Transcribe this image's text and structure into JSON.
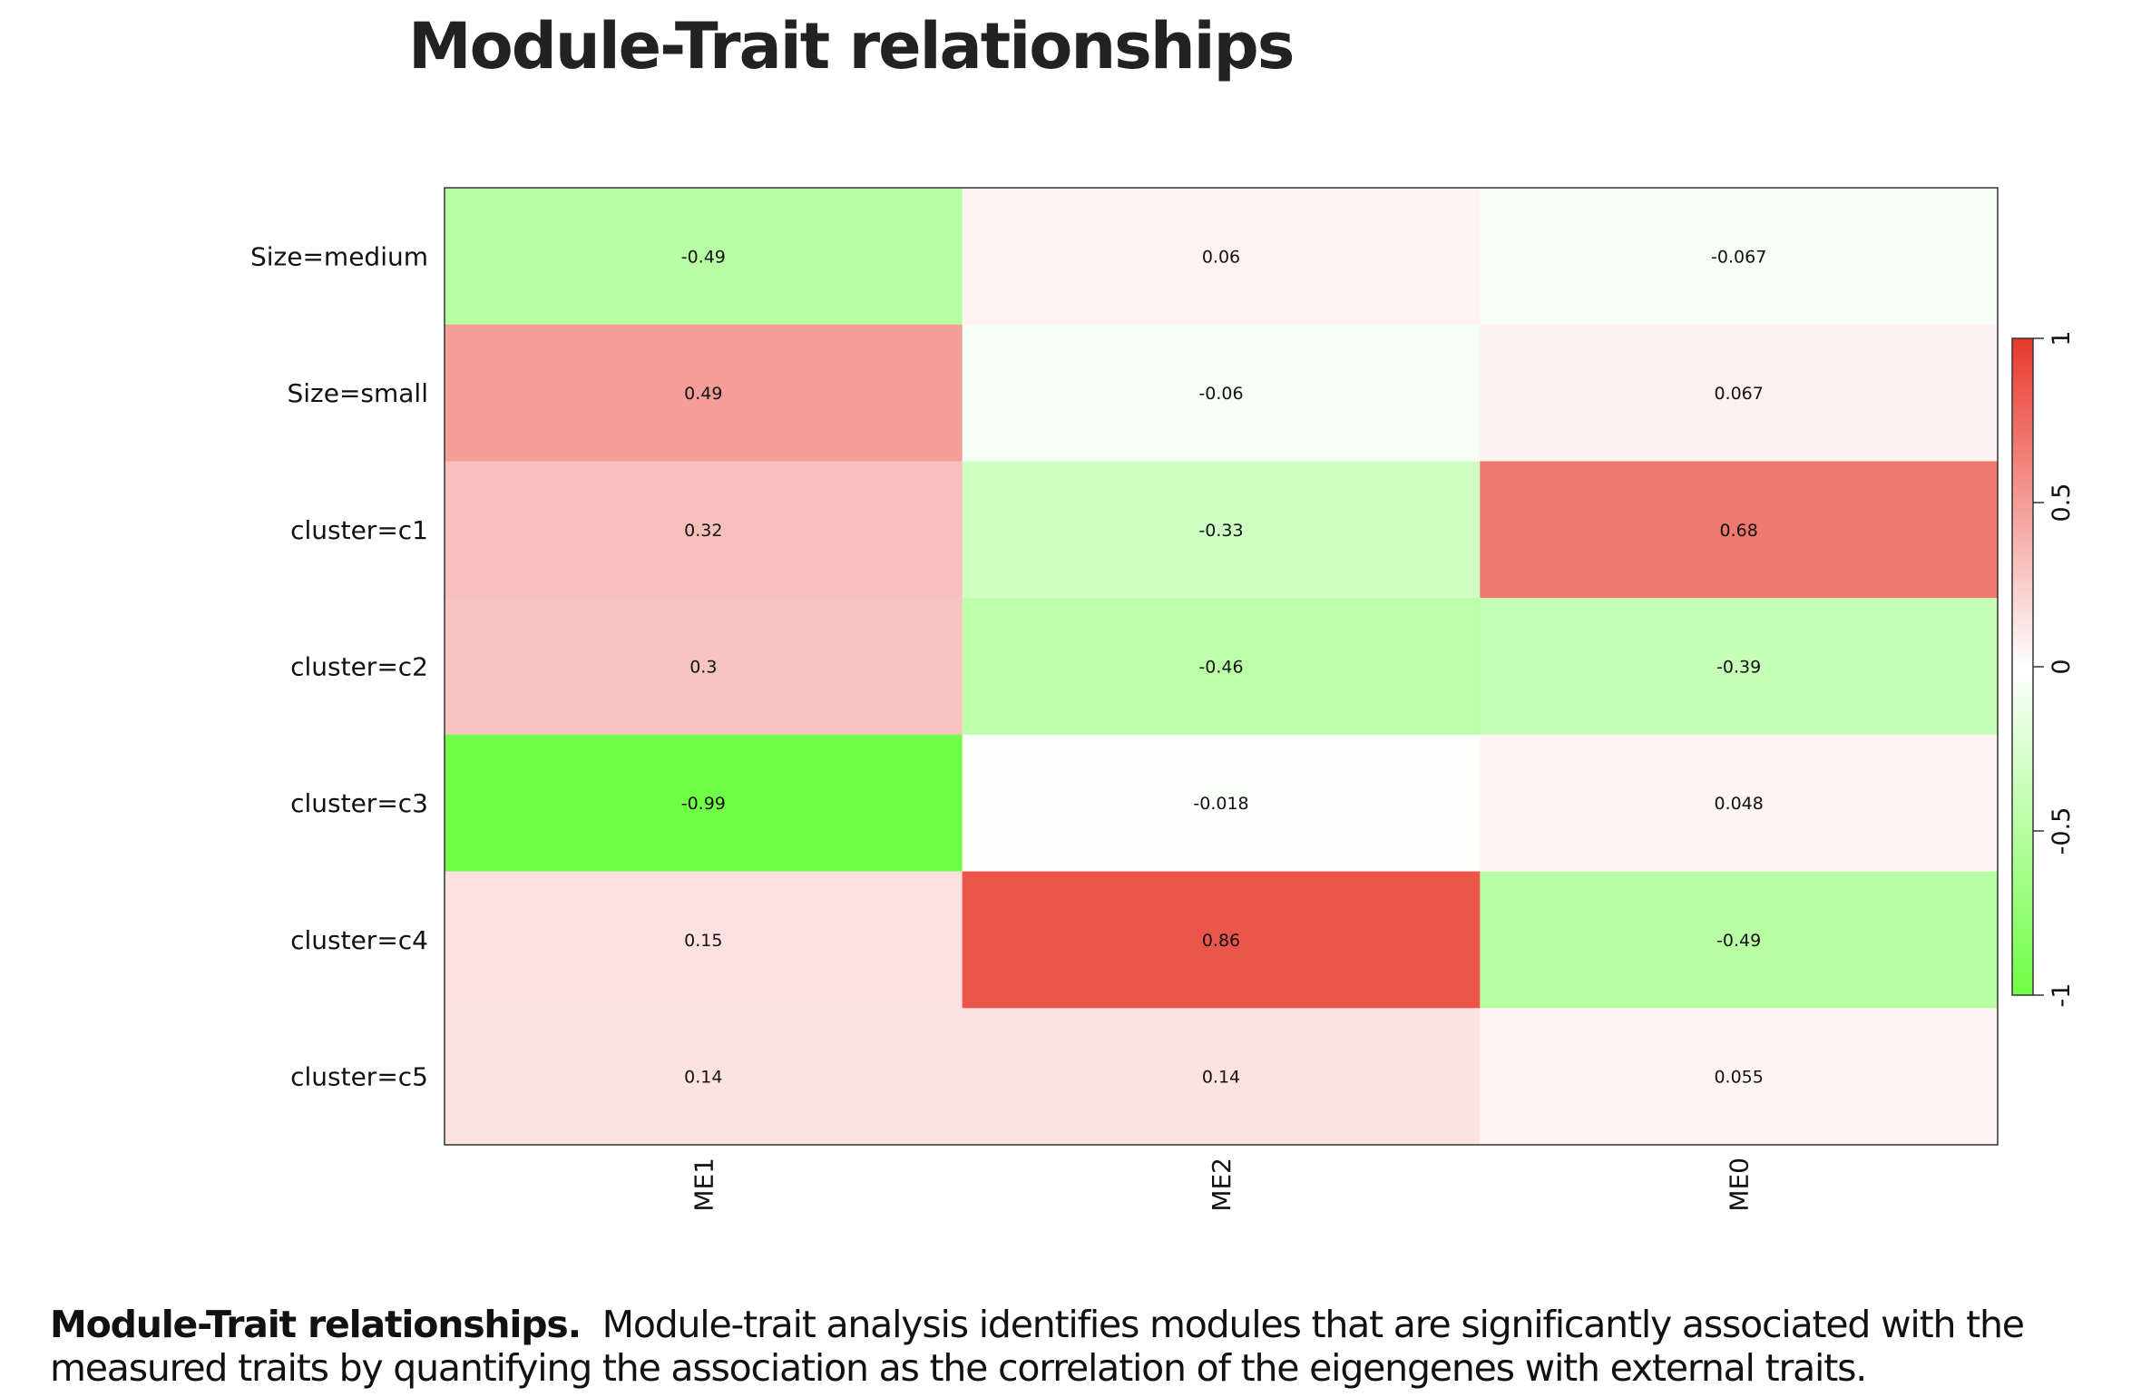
{
  "page": {
    "title": "Module-Trait relationships",
    "caption_lead": "Module-Trait relationships.",
    "caption_text": "Module-trait analysis identifies modules that are significantly associated with the measured traits by quantifying the association as the correlation of the eigengenes with external traits."
  },
  "colors": {
    "negative": "#6ffe45",
    "zero": "#ffffff",
    "positive": "#e8392d",
    "frame": "#333333",
    "cell_text": "#111111"
  },
  "chart_data": {
    "type": "heatmap",
    "title": "",
    "columns": [
      "ME1",
      "ME2",
      "ME0"
    ],
    "rows": [
      "Size=medium",
      "Size=small",
      "cluster=c1",
      "cluster=c2",
      "cluster=c3",
      "cluster=c4",
      "cluster=c5"
    ],
    "values": [
      [
        -0.49,
        0.06,
        -0.067
      ],
      [
        0.49,
        -0.06,
        0.067
      ],
      [
        0.32,
        -0.33,
        0.68
      ],
      [
        0.3,
        -0.46,
        -0.39
      ],
      [
        -0.99,
        -0.018,
        0.048
      ],
      [
        0.15,
        0.86,
        -0.49
      ],
      [
        0.14,
        0.14,
        0.055
      ]
    ],
    "labels": [
      [
        "-0.49",
        "0.06",
        "-0.067"
      ],
      [
        "0.49",
        "-0.06",
        "0.067"
      ],
      [
        "0.32",
        "-0.33",
        "0.68"
      ],
      [
        "0.3",
        "-0.46",
        "-0.39"
      ],
      [
        "-0.99",
        "-0.018",
        "0.048"
      ],
      [
        "0.15",
        "0.86",
        "-0.49"
      ],
      [
        "0.14",
        "0.14",
        "0.055"
      ]
    ],
    "color_range": [
      -1,
      1
    ],
    "colorbar": {
      "ticks": [
        1,
        0.5,
        0,
        -0.5,
        -1
      ],
      "tick_labels": [
        "1",
        "0.5",
        "0",
        "-0.5",
        "-1"
      ],
      "placement": "right"
    }
  }
}
